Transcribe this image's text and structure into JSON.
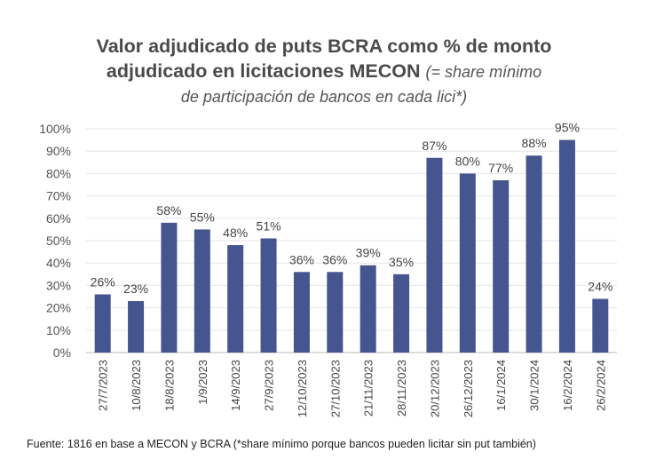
{
  "chart_data": {
    "type": "bar",
    "title_main_1": "Valor adjudicado de puts BCRA como % de monto",
    "title_main_2": "adjudicado en licitaciones MECON",
    "title_note_1": "(= share mínimo",
    "title_note_2": "de participación de bancos en cada lici*)",
    "categories": [
      "27/7/2023",
      "10/8/2023",
      "18/8/2023",
      "1/9/2023",
      "14/9/2023",
      "27/9/2023",
      "12/10/2023",
      "27/10/2023",
      "21/11/2023",
      "28/11/2023",
      "20/12/2023",
      "26/12/2023",
      "16/1/2024",
      "30/1/2024",
      "16/2/2024",
      "26/2/2024"
    ],
    "values": [
      26,
      23,
      58,
      55,
      48,
      51,
      36,
      36,
      39,
      35,
      87,
      80,
      77,
      88,
      95,
      24
    ],
    "data_labels": [
      "26%",
      "23%",
      "58%",
      "55%",
      "48%",
      "51%",
      "36%",
      "36%",
      "39%",
      "35%",
      "87%",
      "80%",
      "77%",
      "88%",
      "95%",
      "24%"
    ],
    "y_ticks": [
      "0%",
      "10%",
      "20%",
      "30%",
      "40%",
      "50%",
      "60%",
      "70%",
      "80%",
      "90%",
      "100%"
    ],
    "ylim": [
      0,
      100
    ],
    "xlabel": "",
    "ylabel": "",
    "grid": true,
    "bar_color": "#44558f"
  },
  "source": "Fuente: 1816 en base a MECON y BCRA (*share mínimo porque bancos pueden licitar sin put también)"
}
